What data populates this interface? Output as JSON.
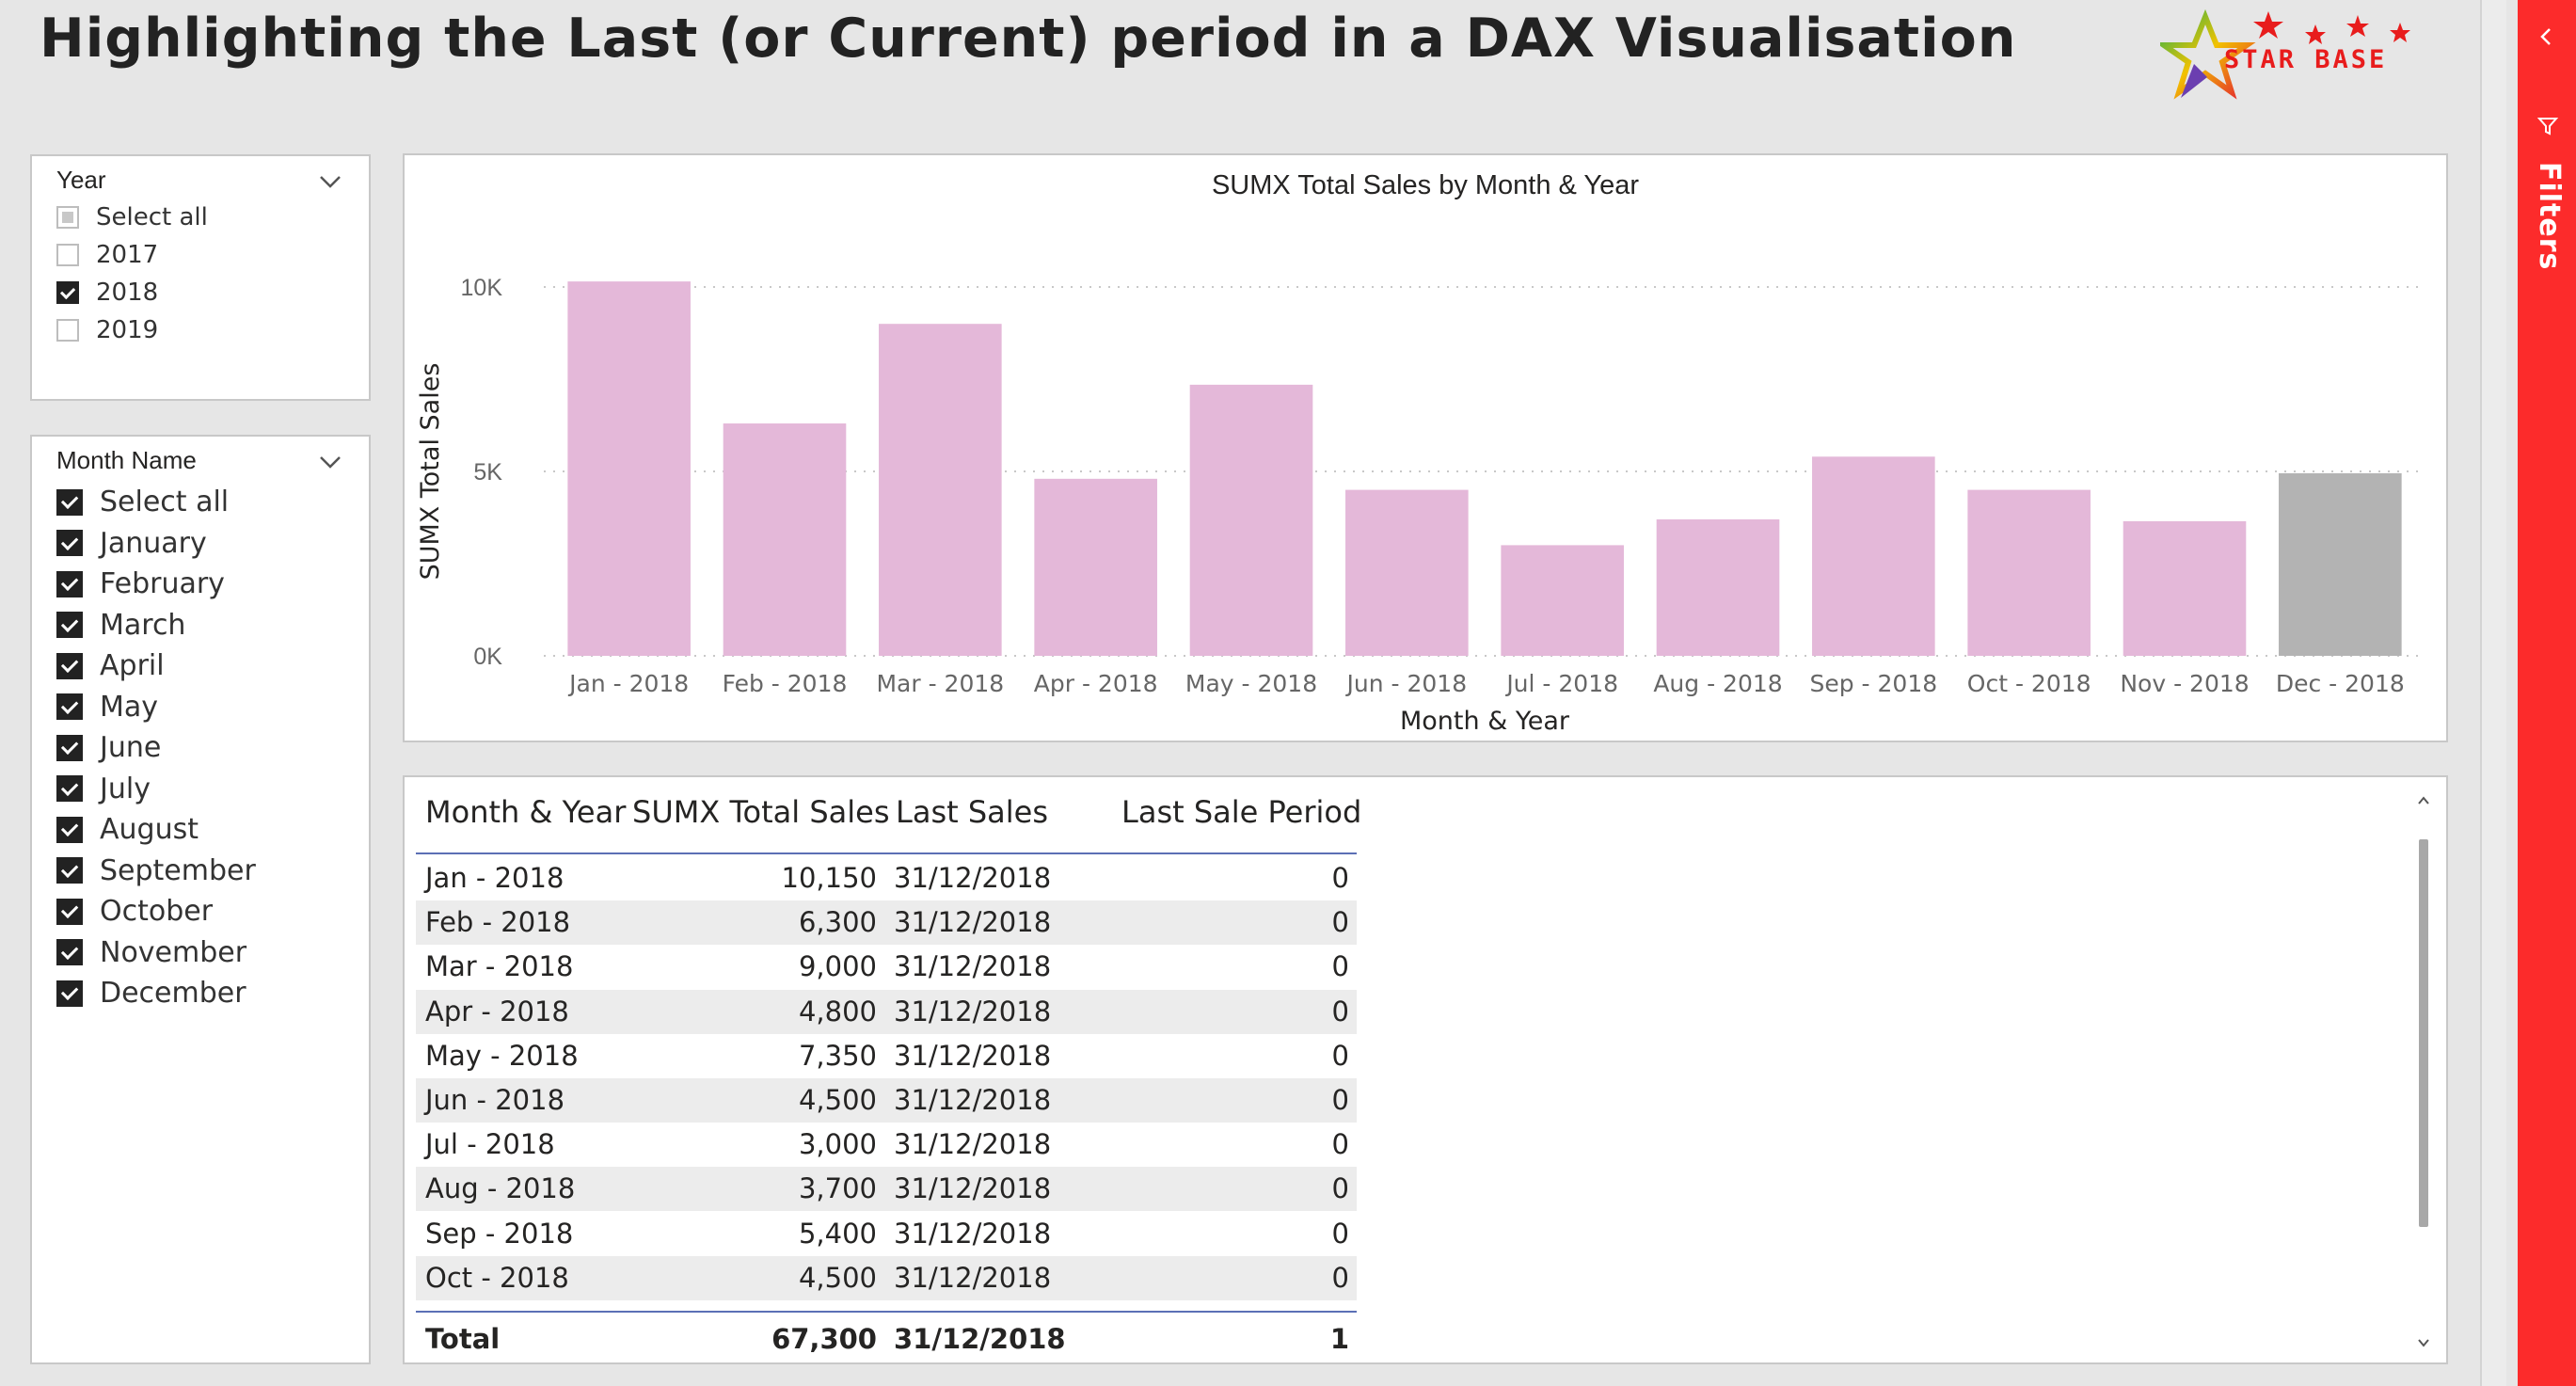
{
  "report": {
    "title": "Highlighting the Last (or Current) period in a DAX Visualisation",
    "logo_text": "STAR BASE"
  },
  "filters_pane": {
    "label": "Filters"
  },
  "year_slicer": {
    "title": "Year",
    "items": [
      {
        "label": "Select all",
        "state": "partial"
      },
      {
        "label": "2017",
        "state": "unchecked"
      },
      {
        "label": "2018",
        "state": "checked"
      },
      {
        "label": "2019",
        "state": "unchecked"
      }
    ]
  },
  "month_slicer": {
    "title": "Month Name",
    "items": [
      {
        "label": "Select all",
        "state": "checked"
      },
      {
        "label": "January",
        "state": "checked"
      },
      {
        "label": "February",
        "state": "checked"
      },
      {
        "label": "March",
        "state": "checked"
      },
      {
        "label": "April",
        "state": "checked"
      },
      {
        "label": "May",
        "state": "checked"
      },
      {
        "label": "June",
        "state": "checked"
      },
      {
        "label": "July",
        "state": "checked"
      },
      {
        "label": "August",
        "state": "checked"
      },
      {
        "label": "September",
        "state": "checked"
      },
      {
        "label": "October",
        "state": "checked"
      },
      {
        "label": "November",
        "state": "checked"
      },
      {
        "label": "December",
        "state": "checked"
      }
    ]
  },
  "chart_data": {
    "type": "bar",
    "title": "SUMX Total Sales by Month & Year",
    "xlabel": "Month & Year",
    "ylabel": "SUMX Total Sales",
    "ylim": [
      0,
      10000
    ],
    "yticks": [
      {
        "value": 0,
        "label": "0K"
      },
      {
        "value": 5000,
        "label": "5K"
      },
      {
        "value": 10000,
        "label": "10K"
      }
    ],
    "grid": true,
    "categories": [
      "Jan - 2018",
      "Feb - 2018",
      "Mar - 2018",
      "Apr - 2018",
      "May - 2018",
      "Jun - 2018",
      "Jul - 2018",
      "Aug - 2018",
      "Sep - 2018",
      "Oct - 2018",
      "Nov - 2018",
      "Dec - 2018"
    ],
    "values": [
      10150,
      6300,
      9000,
      4800,
      7350,
      4500,
      3000,
      3700,
      5400,
      4500,
      3650,
      4950
    ],
    "colors": {
      "default": "#e4b8d9",
      "highlight": "#b3b3b3"
    },
    "highlight_index": 11
  },
  "table": {
    "headers": [
      "Month & Year",
      "SUMX Total Sales",
      "Last Sales",
      "Last Sale Period"
    ],
    "rows": [
      [
        "Jan - 2018",
        "10,150",
        "31/12/2018",
        "0"
      ],
      [
        "Feb - 2018",
        "6,300",
        "31/12/2018",
        "0"
      ],
      [
        "Mar - 2018",
        "9,000",
        "31/12/2018",
        "0"
      ],
      [
        "Apr - 2018",
        "4,800",
        "31/12/2018",
        "0"
      ],
      [
        "May - 2018",
        "7,350",
        "31/12/2018",
        "0"
      ],
      [
        "Jun - 2018",
        "4,500",
        "31/12/2018",
        "0"
      ],
      [
        "Jul - 2018",
        "3,000",
        "31/12/2018",
        "0"
      ],
      [
        "Aug - 2018",
        "3,700",
        "31/12/2018",
        "0"
      ],
      [
        "Sep - 2018",
        "5,400",
        "31/12/2018",
        "0"
      ],
      [
        "Oct - 2018",
        "4,500",
        "31/12/2018",
        "0"
      ]
    ],
    "total": [
      "Total",
      "67,300",
      "31/12/2018",
      "1"
    ],
    "header_rule_color": "#5b6fb5"
  }
}
